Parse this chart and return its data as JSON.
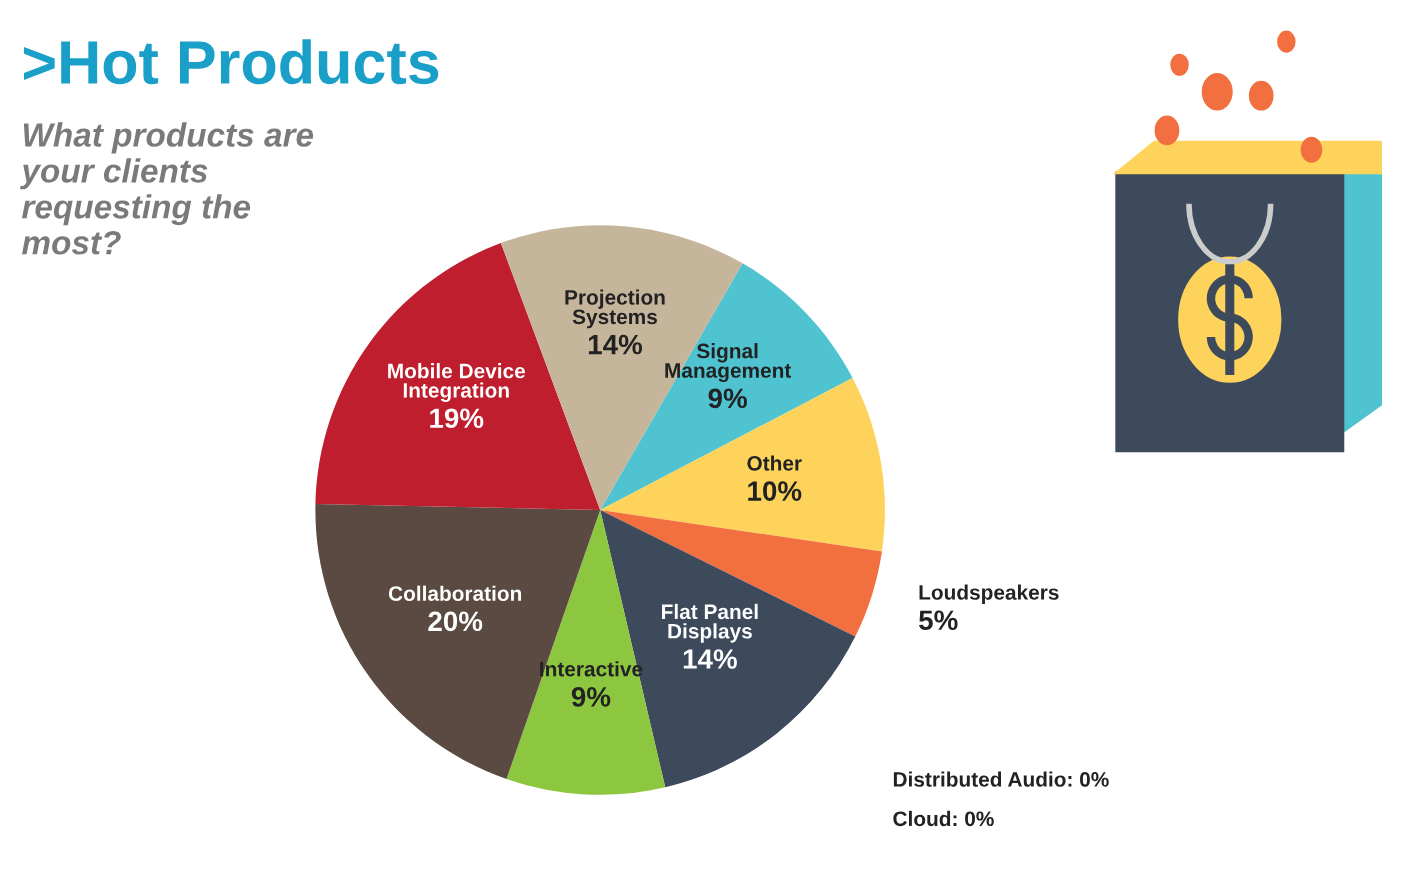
{
  "chart_data": {
    "type": "pie",
    "title": ">Hot Products",
    "subtitle": "What products are your clients requesting the most?",
    "categories": [
      "Signal\nManagement",
      "Other",
      "Loudspeakers",
      "Flat Panel\nDisplays",
      "Interactive",
      "Collaboration",
      "Mobile Device\nIntegration",
      "Projection\nSystems"
    ],
    "values": [
      9,
      10,
      5,
      14,
      9,
      20,
      19,
      14
    ],
    "value_labels": [
      "9%",
      "10%",
      "5%",
      "14%",
      "9%",
      "20%",
      "19%",
      "14%"
    ],
    "colors": [
      "#4fc3d0",
      "#fdd35c",
      "#f26f40",
      "#3d4a5c",
      "#8dc63f",
      "#5a4a42",
      "#be1e2d",
      "#c4b59b"
    ],
    "annotations": [
      "Distributed Audio: 0%",
      "Cloud: 0%"
    ]
  }
}
